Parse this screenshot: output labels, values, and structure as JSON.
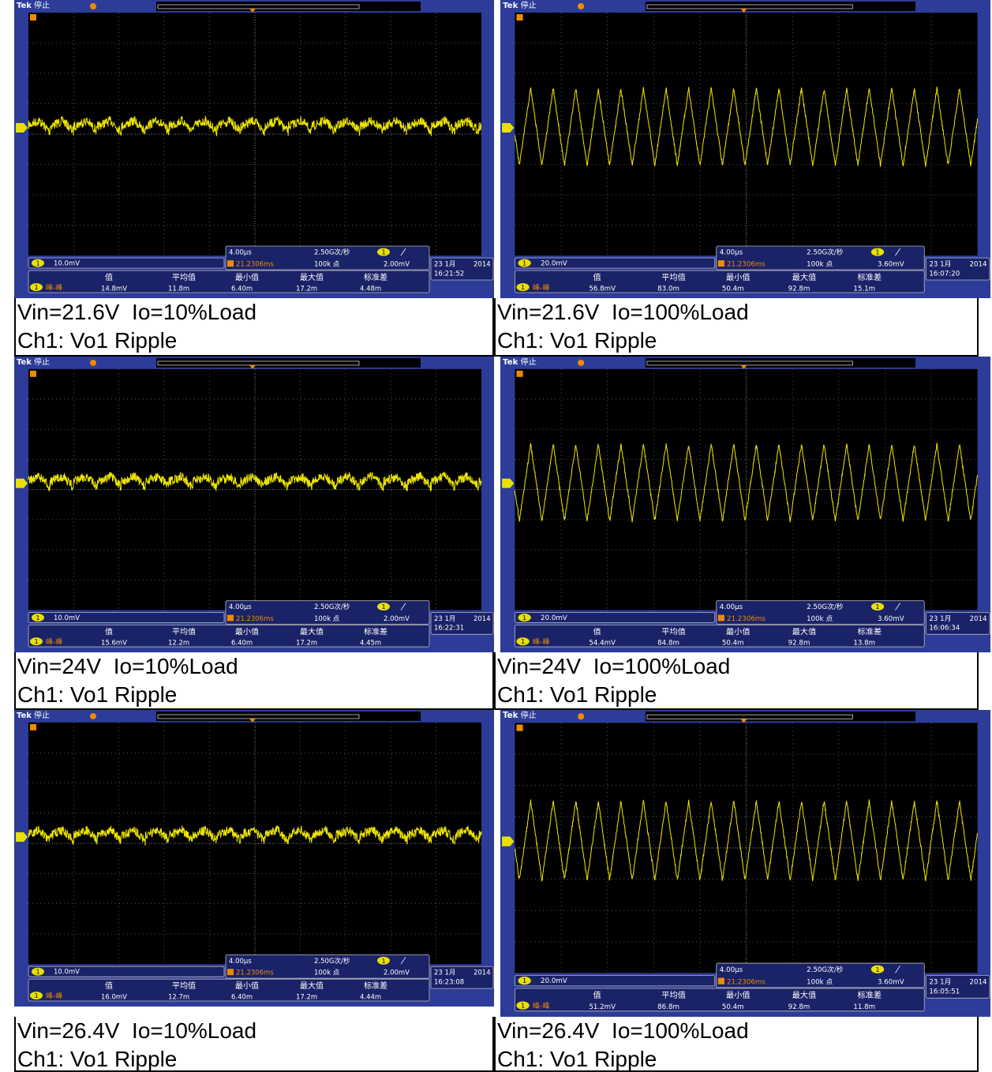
{
  "panels": [
    {
      "brand": "Tek",
      "status": "停止",
      "channel": "1",
      "channel_scale": "10.0mV",
      "timebase": "4.00µs",
      "sample_rate": "2.50G次/秒",
      "record_length": "100k 点",
      "trigger_level": "2.00mV",
      "trigger_time": "21.2306ms",
      "date": "23 1月",
      "year": "2014",
      "clock": "16:21:52",
      "measure_name": "峰-峰",
      "measure_headers": [
        "值",
        "平均值",
        "最小值",
        "最大值",
        "标准差"
      ],
      "measure_values": [
        "14.8mV",
        "11.8m",
        "6.40m",
        "17.2m",
        "4.48m"
      ],
      "caption_line1": "Vin=21.6V  Io=10%Load",
      "caption_line2": "Ch1: Vo1 Ripple"
    },
    {
      "brand": "Tek",
      "status": "停止",
      "channel": "1",
      "channel_scale": "20.0mV",
      "timebase": "4.00µs",
      "sample_rate": "2.50G次/秒",
      "record_length": "100k 点",
      "trigger_level": "3.60mV",
      "trigger_time": "21.2306ms",
      "date": "23 1月",
      "year": "2014",
      "clock": "16:07:20",
      "measure_name": "峰-峰",
      "measure_headers": [
        "值",
        "平均值",
        "最小值",
        "最大值",
        "标准差"
      ],
      "measure_values": [
        "56.8mV",
        "83.0m",
        "50.4m",
        "92.8m",
        "15.1m"
      ],
      "caption_line1": "Vin=21.6V  Io=100%Load",
      "caption_line2": "Ch1: Vo1 Ripple"
    },
    {
      "brand": "Tek",
      "status": "停止",
      "channel": "1",
      "channel_scale": "10.0mV",
      "timebase": "4.00µs",
      "sample_rate": "2.50G次/秒",
      "record_length": "100k 点",
      "trigger_level": "2.00mV",
      "trigger_time": "21.2306ms",
      "date": "23 1月",
      "year": "2014",
      "clock": "16:22:31",
      "measure_name": "峰-峰",
      "measure_headers": [
        "值",
        "平均值",
        "最小值",
        "最大值",
        "标准差"
      ],
      "measure_values": [
        "15.6mV",
        "12.2m",
        "6.40m",
        "17.2m",
        "4.45m"
      ],
      "caption_line1": "Vin=24V  Io=10%Load",
      "caption_line2": "Ch1: Vo1 Ripple"
    },
    {
      "brand": "Tek",
      "status": "停止",
      "channel": "1",
      "channel_scale": "20.0mV",
      "timebase": "4.00µs",
      "sample_rate": "2.50G次/秒",
      "record_length": "100k 点",
      "trigger_level": "3.60mV",
      "trigger_time": "21.2306ms",
      "date": "23 1月",
      "year": "2014",
      "clock": "16:06:34",
      "measure_name": "峰-峰",
      "measure_headers": [
        "值",
        "平均值",
        "最小值",
        "最大值",
        "标准差"
      ],
      "measure_values": [
        "54.4mV",
        "84.8m",
        "50.4m",
        "92.8m",
        "13.8m"
      ],
      "caption_line1": "Vin=24V  Io=100%Load",
      "caption_line2": "Ch1: Vo1 Ripple"
    },
    {
      "brand": "Tek",
      "status": "停止",
      "channel": "1",
      "channel_scale": "10.0mV",
      "timebase": "4.00µs",
      "sample_rate": "2.50G次/秒",
      "record_length": "100k 点",
      "trigger_level": "2.00mV",
      "trigger_time": "21.2306ms",
      "date": "23 1月",
      "year": "2014",
      "clock": "16:23:08",
      "measure_name": "峰-峰",
      "measure_headers": [
        "值",
        "平均值",
        "最小值",
        "最大值",
        "标准差"
      ],
      "measure_values": [
        "16.0mV",
        "12.7m",
        "6.40m",
        "17.2m",
        "4.44m"
      ],
      "caption_line1": "Vin=26.4V  Io=10%Load",
      "caption_line2": "Ch1: Vo1 Ripple"
    },
    {
      "brand": "Tek",
      "status": "停止",
      "channel": "1",
      "channel_scale": "20.0mV",
      "timebase": "4.00µs",
      "sample_rate": "2.50G次/秒",
      "record_length": "100k 点",
      "trigger_level": "3.60mV",
      "trigger_time": "21.2306ms",
      "date": "23 1月",
      "year": "2014",
      "clock": "16:05:51",
      "measure_name": "峰-峰",
      "measure_headers": [
        "值",
        "平均值",
        "最小值",
        "最大值",
        "标准差"
      ],
      "measure_values": [
        "51.2mV",
        "86.8m",
        "50.4m",
        "92.8m",
        "11.8m"
      ],
      "caption_line1": "Vin=26.4V  Io=100%Load",
      "caption_line2": "Ch1: Vo1 Ripple"
    }
  ]
}
